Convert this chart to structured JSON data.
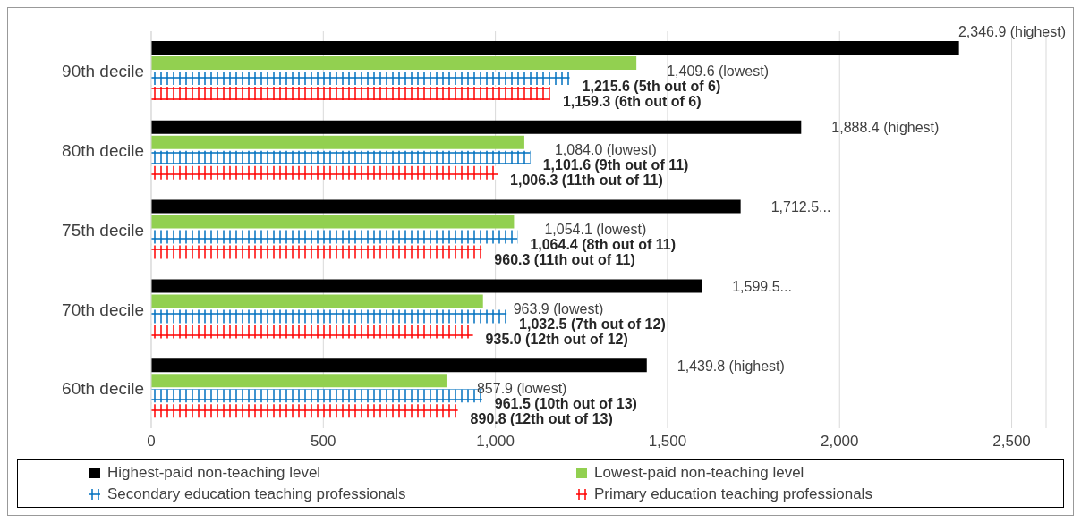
{
  "chart_data": {
    "type": "bar",
    "orientation": "horizontal",
    "categories": [
      "90th decile",
      "80th decile",
      "75th decile",
      "70th decile",
      "60th decile"
    ],
    "series": [
      {
        "name": "Highest-paid non-teaching level",
        "color": "#000000",
        "values": [
          2346.9,
          1888.4,
          1712.5,
          1599.5,
          1439.8
        ],
        "value_labels": [
          "2,346.9  (highest)",
          "1,888.4 (highest)",
          "1,712.5...",
          "1,599.5...",
          "1,439.8 (highest)"
        ]
      },
      {
        "name": "Lowest-paid non-teaching level",
        "color": "#92d050",
        "values": [
          1409.6,
          1084.0,
          1054.1,
          963.9,
          857.9
        ],
        "value_labels": [
          "1,409.6 (lowest)",
          "1,084.0 (lowest)",
          "1,054.1 (lowest)",
          "963.9 (lowest)",
          "857.9 (lowest)"
        ]
      },
      {
        "name": "Secondary education teaching professionals",
        "color": "#0070c0",
        "values": [
          1215.6,
          1101.6,
          1064.4,
          1032.5,
          961.5
        ],
        "value_labels": [
          "1,215.6 (5th out of 6)",
          "1,101.6 (9th out of 11)",
          "1,064.4 (8th out of 11)",
          "1,032.5 (7th out of 12)",
          "961.5 (10th out of 13)"
        ]
      },
      {
        "name": "Primary education teaching professionals",
        "color": "#ff0000",
        "values": [
          1159.3,
          1006.3,
          960.3,
          935.0,
          890.8
        ],
        "value_labels": [
          "1,159.3 (6th out of 6)",
          "1,006.3 (11th out of 11)",
          "960.3 (11th out of 11)",
          "935.0 (12th out of 12)",
          "890.8 (12th out of 13)"
        ]
      }
    ],
    "xlim": [
      0,
      2600
    ],
    "xticks": [
      0,
      500,
      {
        "value": 1000,
        "label": "1,000"
      },
      {
        "value": 1500,
        "label": "1,500"
      },
      {
        "value": 2000,
        "label": "2,000"
      },
      {
        "value": 2500,
        "label": "2,500"
      }
    ],
    "grid": "x",
    "legend": "bottom"
  }
}
